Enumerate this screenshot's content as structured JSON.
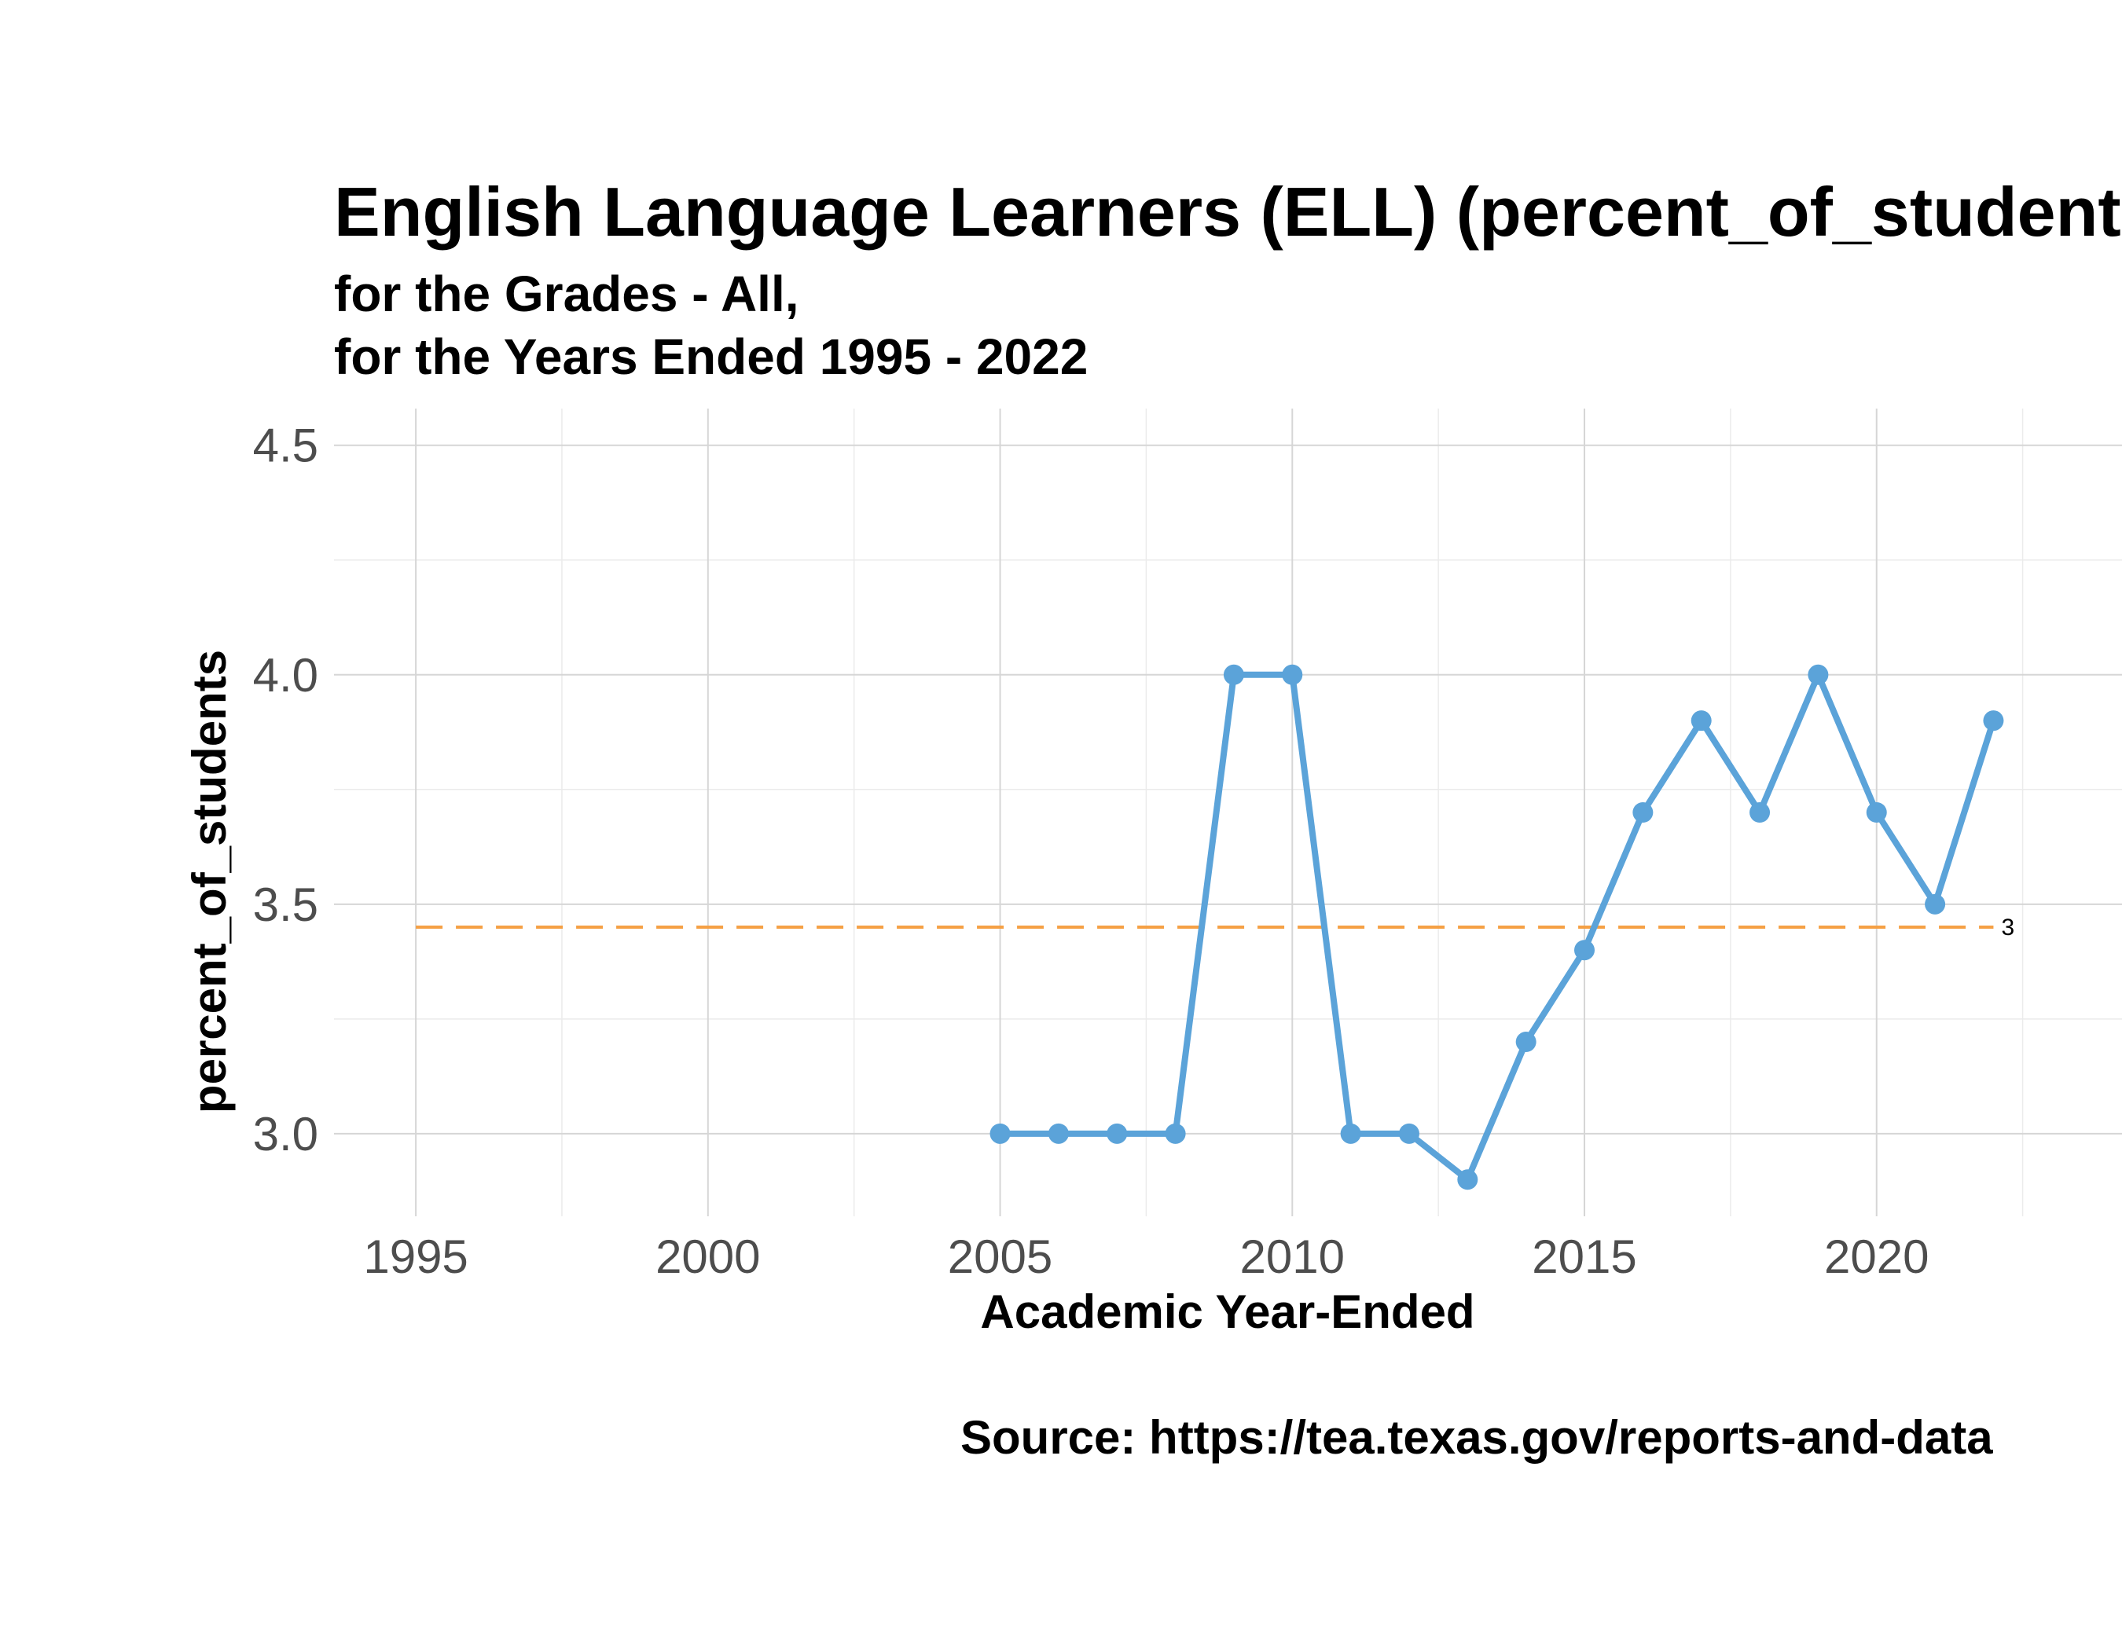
{
  "chart_data": {
    "type": "line",
    "title": "English Language Learners (ELL) (percent_of_students)",
    "subtitle_line1": "for the Grades - All,",
    "subtitle_line2": "for the Years Ended 1995  -  2022",
    "xlabel": "Academic Year-Ended",
    "ylabel": "percent_of_students",
    "caption": "Source:  https://tea.texas.gov/reports-and-data",
    "xlim": [
      1993.6,
      2024.2
    ],
    "ylim": [
      2.82,
      4.58
    ],
    "x_ticks": [
      1995,
      2000,
      2005,
      2010,
      2015,
      2020
    ],
    "y_ticks": [
      3.0,
      3.5,
      4.0,
      4.5
    ],
    "y_tick_labels": [
      "3.0",
      "3.5",
      "4.0",
      "4.5"
    ],
    "grid": true,
    "series": [
      {
        "color": "#5ba3d9",
        "x": [
          2005,
          2006,
          2007,
          2008,
          2009,
          2010,
          2011,
          2012,
          2013,
          2014,
          2015,
          2016,
          2017,
          2018,
          2019,
          2020,
          2021,
          2022
        ],
        "values": [
          3.0,
          3.0,
          3.0,
          3.0,
          4.0,
          4.0,
          3.0,
          3.0,
          2.9,
          3.2,
          3.4,
          3.7,
          3.9,
          3.7,
          4.0,
          3.7,
          3.5,
          3.9
        ]
      }
    ],
    "reference_line": {
      "y": 3.45,
      "x_start": 1995,
      "x_end": 2022,
      "color": "#f5a044",
      "style": "dashed",
      "label": "3"
    }
  }
}
